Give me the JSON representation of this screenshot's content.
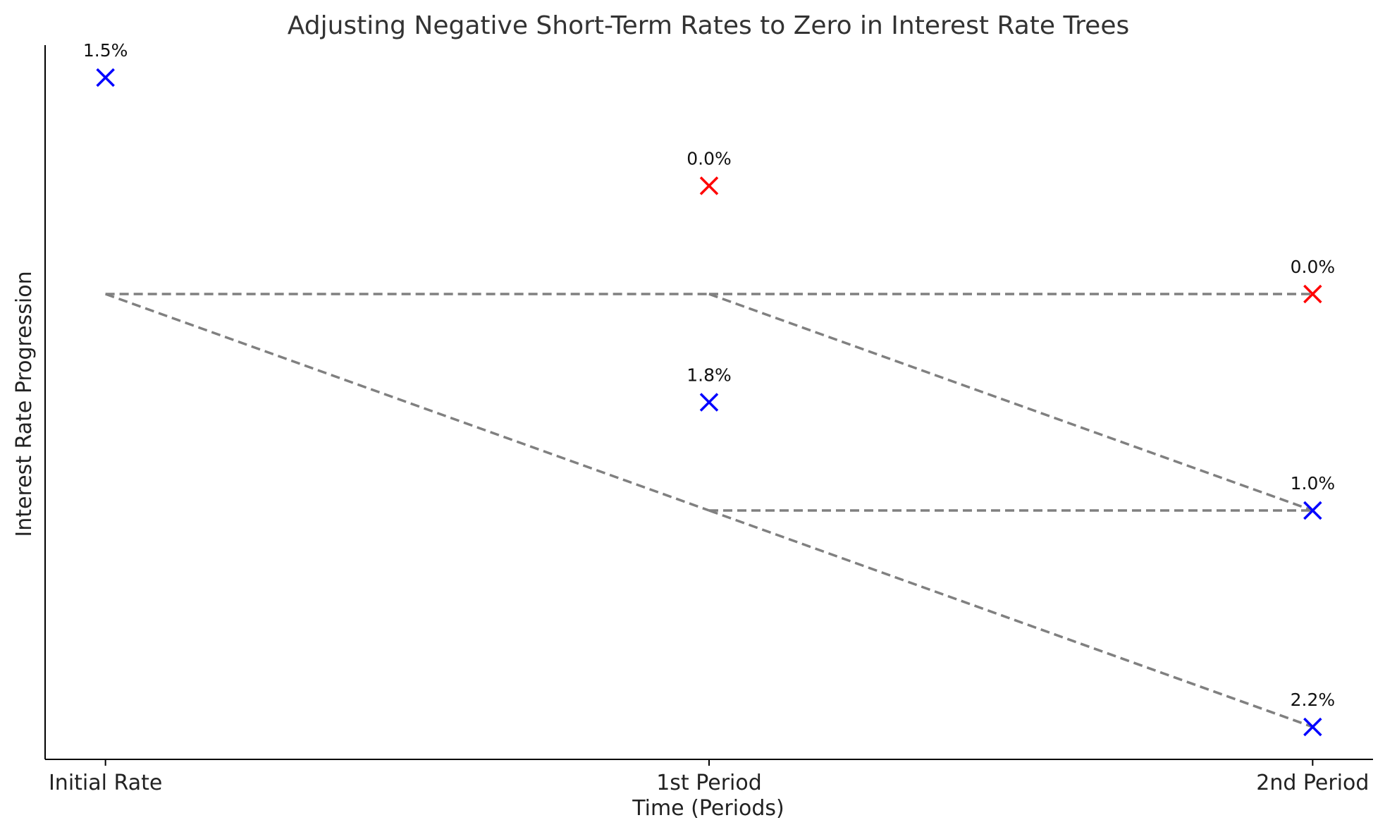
{
  "chart_data": {
    "type": "scatter",
    "title": "Adjusting Negative Short-Term Rates to Zero in Interest Rate Trees",
    "xlabel": "Time (Periods)",
    "ylabel": "Interest Rate Progression",
    "categories": [
      "Initial Rate",
      "1st Period",
      "2nd Period"
    ],
    "grid": false,
    "legend": "none",
    "marker": "x",
    "points": [
      {
        "x": 0,
        "y": 4,
        "label": "1.5%",
        "color": "#0000ff"
      },
      {
        "x": 1,
        "y": 3,
        "label": "0.0%",
        "color": "#ff0000"
      },
      {
        "x": 1,
        "y": 1,
        "label": "1.8%",
        "color": "#0000ff"
      },
      {
        "x": 2,
        "y": 2,
        "label": "0.0%",
        "color": "#ff0000"
      },
      {
        "x": 2,
        "y": 0,
        "label": "1.0%",
        "color": "#0000ff"
      },
      {
        "x": 2,
        "y": -2,
        "label": "2.2%",
        "color": "#0000ff"
      }
    ],
    "tree_lines": [
      {
        "from": [
          0,
          2
        ],
        "to": [
          1,
          2
        ]
      },
      {
        "from": [
          0,
          2
        ],
        "to": [
          1,
          0
        ]
      },
      {
        "from": [
          1,
          2
        ],
        "to": [
          2,
          2
        ]
      },
      {
        "from": [
          1,
          2
        ],
        "to": [
          2,
          0
        ]
      },
      {
        "from": [
          1,
          0
        ],
        "to": [
          2,
          0
        ]
      },
      {
        "from": [
          1,
          0
        ],
        "to": [
          2,
          -2
        ]
      }
    ],
    "line_color": "#808080",
    "line_style": "dashed",
    "xlim": [
      -0.1,
      2.1
    ],
    "ylim": [
      -2.3,
      4.3
    ]
  }
}
